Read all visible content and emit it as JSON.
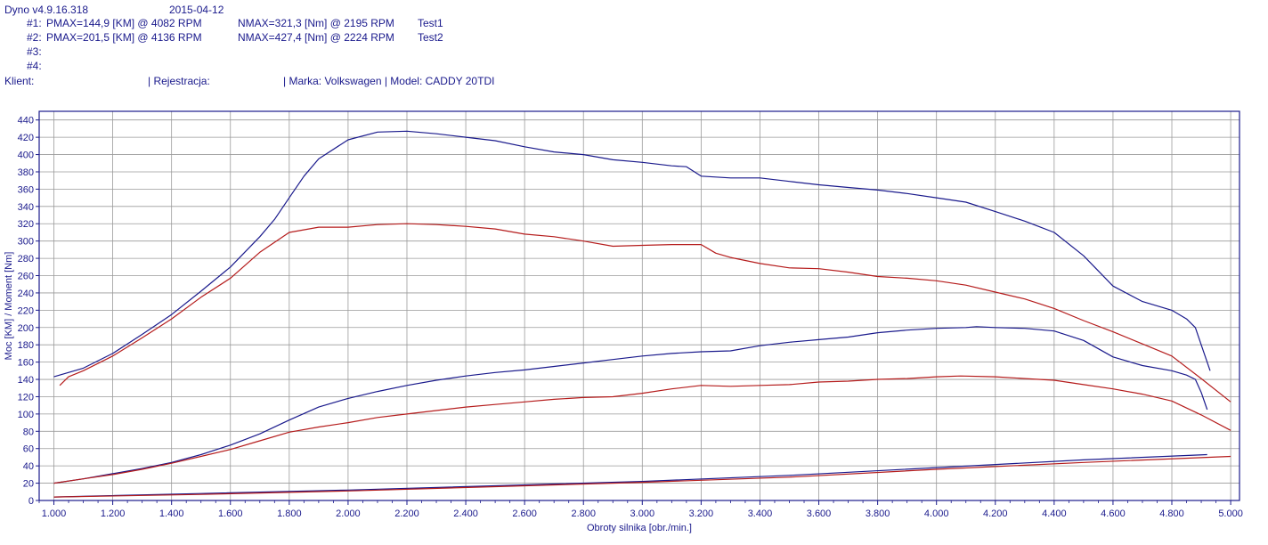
{
  "header": {
    "app_version": "Dyno v4.9.16.318",
    "date": "2015-04-12",
    "runs": [
      {
        "id": "#1:",
        "pmax": "PMAX=144,9 [KM] @ 4082 RPM",
        "nmax": "NMAX=321,3 [Nm] @ 2195 RPM",
        "name": "Test1"
      },
      {
        "id": "#2:",
        "pmax": "PMAX=201,5 [KM] @ 4136 RPM",
        "nmax": "NMAX=427,4 [Nm] @ 2224 RPM",
        "name": "Test2"
      },
      {
        "id": "#3:",
        "pmax": "",
        "nmax": "",
        "name": ""
      },
      {
        "id": "#4:",
        "pmax": "",
        "nmax": "",
        "name": ""
      }
    ],
    "client_label": "Klient:",
    "registration_label": "| Rejestracja:",
    "vehicle": "| Marka: Volkswagen | Model: CADDY 20TDI"
  },
  "chart_data": {
    "type": "line",
    "xlabel": "Obroty silnika [obr./min.]",
    "ylabel": "Moc [KM] / Moment [Nm]",
    "xlim": [
      950,
      5030
    ],
    "ylim": [
      0,
      450
    ],
    "x_ticks": [
      1000,
      1200,
      1400,
      1600,
      1800,
      2000,
      2200,
      2400,
      2600,
      2800,
      3000,
      3200,
      3400,
      3600,
      3800,
      4000,
      4200,
      4400,
      4600,
      4800,
      5000
    ],
    "x_tick_labels": [
      "1.000",
      "1.200",
      "1.400",
      "1.600",
      "1.800",
      "2.000",
      "2.200",
      "2.400",
      "2.600",
      "2.800",
      "3.000",
      "3.200",
      "3.400",
      "3.600",
      "3.800",
      "4.000",
      "4.200",
      "4.400",
      "4.600",
      "4.800",
      "5.000"
    ],
    "y_ticks": [
      0,
      20,
      40,
      60,
      80,
      100,
      120,
      140,
      160,
      180,
      200,
      220,
      240,
      260,
      280,
      300,
      320,
      340,
      360,
      380,
      400,
      420,
      440
    ],
    "x_minor_step": 50,
    "grid": true,
    "series": [
      {
        "color": "#1a1a8c",
        "x": [
          1000,
          1100,
          1200,
          1300,
          1400,
          1500,
          1600,
          1700,
          1750,
          1800,
          1850,
          1900,
          2000,
          2100,
          2200,
          2300,
          2400,
          2500,
          2600,
          2700,
          2800,
          2900,
          3000,
          3100,
          3150,
          3200,
          3300,
          3400,
          3500,
          3600,
          3700,
          3800,
          3900,
          4000,
          4100,
          4200,
          4300,
          4400,
          4500,
          4600,
          4700,
          4800,
          4850,
          4880,
          4900,
          4930
        ],
        "y": [
          143,
          153,
          170,
          192,
          215,
          242,
          270,
          305,
          325,
          350,
          375,
          395,
          417,
          426,
          427,
          424,
          420,
          416,
          409,
          403,
          400,
          394,
          391,
          387,
          386,
          375,
          373,
          373,
          369,
          365,
          362,
          359,
          355,
          350,
          345,
          334,
          323,
          310,
          283,
          248,
          230,
          220,
          210,
          200,
          180,
          150
        ]
      },
      {
        "color": "#b51c1c",
        "x": [
          1020,
          1050,
          1100,
          1200,
          1300,
          1400,
          1500,
          1600,
          1700,
          1800,
          1900,
          2000,
          2100,
          2200,
          2300,
          2400,
          2500,
          2600,
          2700,
          2800,
          2900,
          3000,
          3100,
          3200,
          3250,
          3300,
          3400,
          3500,
          3600,
          3700,
          3800,
          3900,
          4000,
          4100,
          4200,
          4300,
          4400,
          4500,
          4600,
          4700,
          4800,
          4900,
          5000
        ],
        "y": [
          133,
          143,
          150,
          167,
          188,
          210,
          235,
          257,
          287,
          310,
          316,
          316,
          319,
          320,
          319,
          317,
          314,
          308,
          305,
          300,
          294,
          295,
          296,
          296,
          286,
          281,
          274,
          269,
          268,
          264,
          259,
          257,
          254,
          249,
          241,
          233,
          222,
          208,
          195,
          181,
          167,
          141,
          114
        ]
      },
      {
        "color": "#1a1a8c",
        "x": [
          1000,
          1100,
          1200,
          1300,
          1400,
          1500,
          1600,
          1700,
          1800,
          1900,
          2000,
          2100,
          2200,
          2300,
          2400,
          2500,
          2600,
          2700,
          2800,
          2900,
          3000,
          3100,
          3200,
          3300,
          3400,
          3500,
          3600,
          3700,
          3800,
          3900,
          4000,
          4100,
          4136,
          4200,
          4300,
          4400,
          4500,
          4600,
          4700,
          4800,
          4850,
          4880,
          4900,
          4920
        ],
        "y": [
          20,
          25,
          31,
          37,
          44,
          53,
          64,
          77,
          93,
          108,
          118,
          126,
          133,
          139,
          144,
          148,
          151,
          155,
          159,
          163,
          167,
          170,
          172,
          173,
          179,
          183,
          186,
          189,
          194,
          197,
          199,
          200,
          201,
          200,
          199,
          196,
          185,
          166,
          156,
          150,
          145,
          140,
          125,
          105
        ]
      },
      {
        "color": "#b51c1c",
        "x": [
          1000,
          1100,
          1200,
          1300,
          1400,
          1500,
          1600,
          1700,
          1800,
          1900,
          2000,
          2100,
          2200,
          2300,
          2400,
          2500,
          2600,
          2700,
          2800,
          2900,
          3000,
          3100,
          3200,
          3300,
          3400,
          3500,
          3600,
          3700,
          3800,
          3900,
          4000,
          4082,
          4200,
          4300,
          4400,
          4500,
          4600,
          4700,
          4800,
          4900,
          5000
        ],
        "y": [
          20,
          25,
          30,
          36,
          43,
          51,
          59,
          69,
          79,
          85,
          90,
          96,
          100,
          104,
          108,
          111,
          114,
          117,
          119,
          120,
          124,
          129,
          133,
          132,
          133,
          134,
          137,
          138,
          140,
          141,
          143,
          144,
          143,
          141,
          139,
          134,
          129,
          123,
          115,
          99,
          81
        ]
      },
      {
        "color": "#1a1a8c",
        "x": [
          1000,
          1500,
          2000,
          2500,
          3000,
          3500,
          4000,
          4500,
          4920
        ],
        "y": [
          4,
          8,
          12,
          17,
          22,
          29,
          38,
          47,
          53
        ]
      },
      {
        "color": "#b51c1c",
        "x": [
          1000,
          1500,
          2000,
          2500,
          3000,
          3500,
          4000,
          4500,
          5000
        ],
        "y": [
          4,
          7,
          11,
          16,
          21,
          27,
          36,
          44,
          51
        ]
      }
    ]
  }
}
